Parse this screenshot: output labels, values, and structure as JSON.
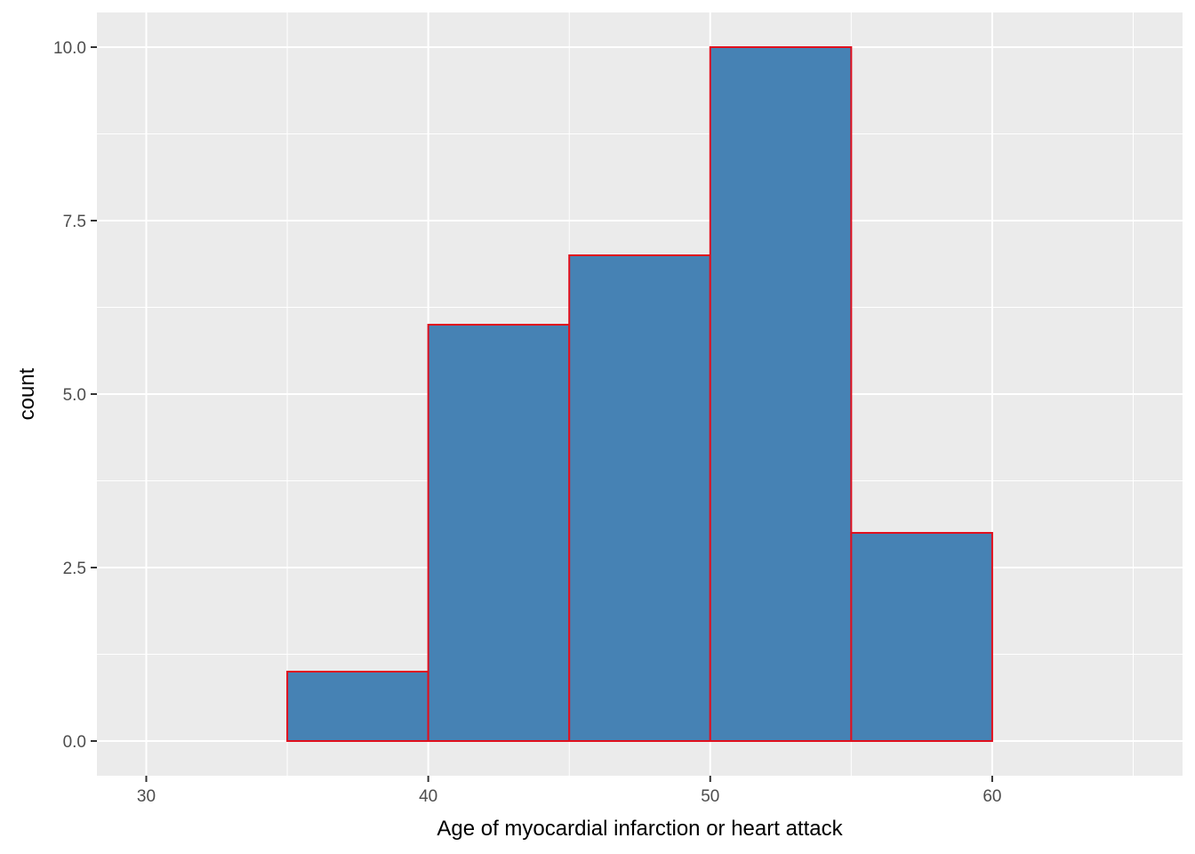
{
  "chart_data": {
    "type": "bar",
    "subtype": "histogram",
    "title": "",
    "xlabel": "Age of myocardial infarction or heart attack",
    "ylabel": "count",
    "bins": [
      {
        "x0": 30,
        "x1": 35,
        "count": 0
      },
      {
        "x0": 35,
        "x1": 40,
        "count": 1
      },
      {
        "x0": 40,
        "x1": 45,
        "count": 6
      },
      {
        "x0": 45,
        "x1": 50,
        "count": 7
      },
      {
        "x0": 50,
        "x1": 55,
        "count": 10
      },
      {
        "x0": 55,
        "x1": 60,
        "count": 3
      },
      {
        "x0": 60,
        "x1": 65,
        "count": 0
      }
    ],
    "xlim": [
      28.25,
      66.75
    ],
    "ylim": [
      -0.5,
      10.5
    ],
    "x_ticks": [
      30,
      40,
      50,
      60
    ],
    "x_tick_labels": [
      "30",
      "40",
      "50",
      "60"
    ],
    "x_minor": [
      35,
      45,
      55,
      65
    ],
    "y_ticks": [
      0,
      2.5,
      5,
      7.5,
      10
    ],
    "y_tick_labels": [
      "0.0",
      "2.5",
      "5.0",
      "7.5",
      "10.0"
    ],
    "y_minor": [
      1.25,
      3.75,
      6.25,
      8.75
    ],
    "grid": true,
    "legend": "none",
    "colors": {
      "fill": "#4682b4",
      "outline": "#e0101e",
      "panel": "#ebebeb",
      "grid": "#ffffff",
      "tick_text": "#4d4d4d",
      "tick_mark": "#333333"
    }
  }
}
